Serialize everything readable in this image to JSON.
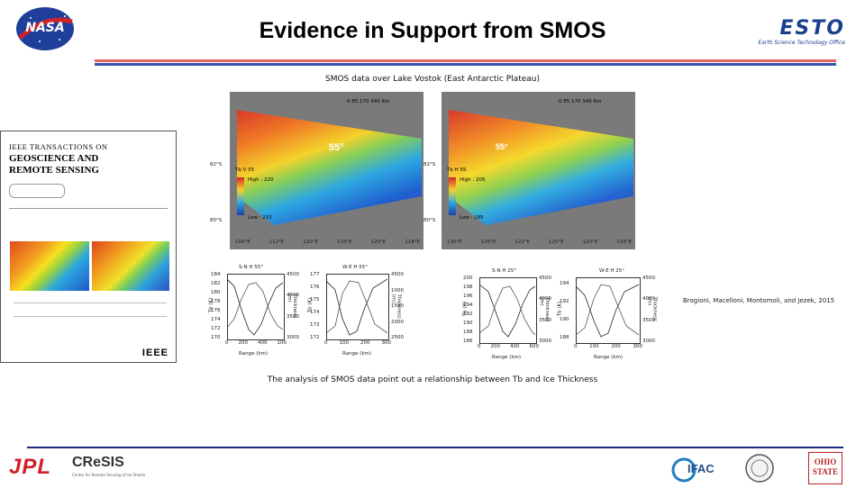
{
  "slide": {
    "title": "Evidence in Support from SMOS",
    "figure_caption": "SMOS data over Lake Vostok (East Antarctic Plateau)",
    "citation": "Brogioni, Macelloni, Montomoli, and Jezek, 2015",
    "conclusion": "The analysis of SMOS data point out a relationship between Tb and Ice Thickness",
    "colors": {
      "title_rule_red": "#e06666",
      "title_rule_blue": "#3355aa",
      "footer_rule": "#1a2a7a"
    }
  },
  "journal": {
    "line1": "IEEE TRANSACTIONS ON",
    "line2": "GEOSCIENCE AND",
    "line3": "REMOTE SENSING",
    "brand": "IEEE"
  },
  "maps": [
    {
      "scale": "0   85   170        340 Km",
      "angle_label": "55°",
      "lat_top": "82°S",
      "lat_bottom": "80°S",
      "legend_title": "Tb V 55",
      "legend_high": "High : 220",
      "legend_low": "Low : 210",
      "lon_labels": [
        "104°E",
        "112°E",
        "120°E",
        "124°E",
        "120°E",
        "118°E"
      ]
    },
    {
      "scale": "0   85   170        340 Km",
      "angle_label": "55°",
      "lat_top": "82°S",
      "lat_bottom": "80°S",
      "legend_title": "Tb H 55",
      "legend_high": "High : 205",
      "legend_low": "Low : 185",
      "lon_labels": [
        "130°E",
        "126°E",
        "122°E",
        "125°E",
        "120°E",
        "118°E"
      ]
    }
  ],
  "chart_data": [
    {
      "type": "line",
      "title": "S-N H 55°",
      "xlabel": "Range (km)",
      "ylabel": "Tb (K)",
      "y2label": "Thickness (m)",
      "xticks": [
        "0",
        "200",
        "400",
        "100"
      ],
      "yticks": [
        "184",
        "182",
        "180",
        "178",
        "176",
        "174",
        "172",
        "170"
      ],
      "y2ticks": [
        "4500",
        "4000",
        "3500",
        "3000"
      ]
    },
    {
      "type": "line",
      "title": "W-E H 55°",
      "xlabel": "Range (km)",
      "ylabel": "Tb (K)",
      "y2label": "Thickness (m)",
      "xticks": [
        "0",
        "100",
        "200",
        "300"
      ],
      "yticks": [
        "177",
        "176",
        "175",
        "174",
        "173",
        "172"
      ],
      "y2ticks": [
        "4500",
        "1000",
        "1500",
        "2000",
        "2500"
      ]
    },
    {
      "type": "line",
      "title": "S-N H 25°",
      "xlabel": "Range (km)",
      "ylabel": "Tb (K)",
      "y2label": "Thickness (m)",
      "xticks": [
        "0",
        "200",
        "400",
        "600"
      ],
      "yticks": [
        "200",
        "198",
        "196",
        "194",
        "192",
        "190",
        "188",
        "186"
      ],
      "y2ticks": [
        "4500",
        "4000",
        "3500",
        "3000"
      ]
    },
    {
      "type": "line",
      "title": "W-E H 25°",
      "xlabel": "Range (km)",
      "ylabel": "Tb (K)",
      "y2label": "Thickness (m)",
      "xticks": [
        "0",
        "100",
        "200",
        "300"
      ],
      "yticks": [
        "194",
        "192",
        "190",
        "188"
      ],
      "y2ticks": [
        "4500",
        "4000",
        "3500",
        "3000"
      ]
    }
  ],
  "logos": {
    "nasa": "NASA",
    "esto": "ESTO",
    "esto_sub": "Earth Science Technology Office",
    "jpl": "JPL",
    "cresis": "CReSIS",
    "cresis_sub": "Center for Remote Sensing of Ice Sheets",
    "ifac": "IFAC",
    "ohio": "OHIO STATE"
  }
}
